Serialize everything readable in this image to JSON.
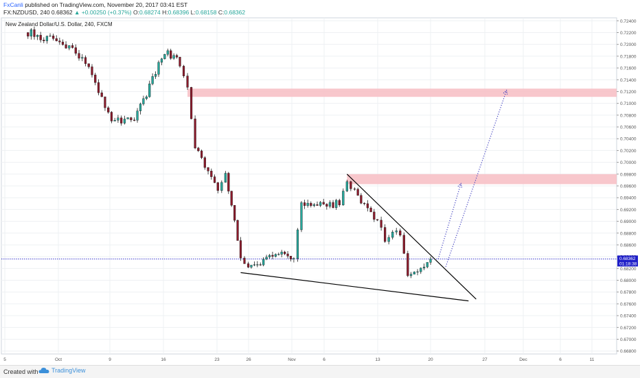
{
  "header": {
    "author": "FxCanli",
    "published_text": "published on TradingView.com, November 20, 2017 03:41 EST",
    "symbol_info": "FX:NZDUSD, 240",
    "last_price": "0.68362",
    "change": "▲ +0.00250 (+0.37%)",
    "o_label": "O:",
    "o_value": "0.68274",
    "h_label": "H:",
    "h_value": "0.68396",
    "l_label": "L:",
    "l_value": "0.68158",
    "c_label": "C:",
    "c_value": "0.68362"
  },
  "footer": {
    "created_with": "Created with",
    "brand": "TradingView"
  },
  "colors": {
    "up": "#26a69a",
    "down": "#8b1a2b",
    "wick": "#1a1a1a",
    "zone": "#f7c1c6",
    "projection": "#3d3dbf",
    "price_tag": "#1e1ec8",
    "grid": "#eef0f3"
  },
  "chart_data": {
    "type": "candlestick",
    "title": "New Zealand Dollar/U.S. Dollar, 240, FXCM",
    "y_ticks": [
      "0.72400",
      "0.72200",
      "0.72000",
      "0.71800",
      "0.71600",
      "0.71400",
      "0.71200",
      "0.71000",
      "0.70800",
      "0.70600",
      "0.70400",
      "0.70200",
      "0.70000",
      "0.69800",
      "0.69600",
      "0.69400",
      "0.69200",
      "0.69000",
      "0.68800",
      "0.68600",
      "0.68400",
      "0.68200",
      "0.68000",
      "0.67800",
      "0.67600",
      "0.67400",
      "0.67200",
      "0.67000",
      "0.66800"
    ],
    "x_ticks": [
      "5",
      "Oct",
      "9",
      "16",
      "23",
      "26",
      "Nov",
      "6",
      "13",
      "20",
      "27",
      "Dec",
      "6",
      "11"
    ],
    "ylim": [
      0.6675,
      0.7245
    ],
    "current_price": "0.68362",
    "countdown": "01:18:38",
    "zones": [
      {
        "name": "upper-resistance-zone",
        "from_date": "Oct 19",
        "low": 0.7111,
        "high": 0.7125
      },
      {
        "name": "lower-resistance-zone",
        "from_date": "Nov 9",
        "low": 0.6963,
        "high": 0.698
      }
    ],
    "trendlines": [
      {
        "name": "wedge-resistance",
        "from": [
          "Nov 9",
          0.698
        ],
        "to": [
          "Nov 26",
          0.6768
        ]
      },
      {
        "name": "wedge-support",
        "from": [
          "Oct 26",
          0.6813
        ],
        "to": [
          "Nov 25",
          0.6765
        ]
      }
    ],
    "projections": [
      {
        "name": "projection-1",
        "points": [
          [
            "Nov 21",
            0.6836
          ],
          [
            "Nov 24",
            0.6964
          ]
        ]
      },
      {
        "name": "projection-2",
        "points": [
          [
            "Nov 22",
            0.6823
          ],
          [
            "Nov 30",
            0.7122
          ]
        ]
      }
    ],
    "anchors": [
      {
        "date": "Sep 28",
        "price": 0.722
      },
      {
        "date": "Oct 3",
        "price": 0.72
      },
      {
        "date": "Oct 6",
        "price": 0.716
      },
      {
        "date": "Oct 9",
        "price": 0.707
      },
      {
        "date": "Oct 12",
        "price": 0.707
      },
      {
        "date": "Oct 16",
        "price": 0.719
      },
      {
        "date": "Oct 18",
        "price": 0.717
      },
      {
        "date": "Oct 19",
        "price": 0.713
      },
      {
        "date": "Oct 20",
        "price": 0.703
      },
      {
        "date": "Oct 23",
        "price": 0.695
      },
      {
        "date": "Oct 24",
        "price": 0.698
      },
      {
        "date": "Oct 26",
        "price": 0.684
      },
      {
        "date": "Oct 27",
        "price": 0.682
      },
      {
        "date": "Oct 31",
        "price": 0.685
      },
      {
        "date": "Nov 2",
        "price": 0.684
      },
      {
        "date": "Nov 3",
        "price": 0.693
      },
      {
        "date": "Nov 8",
        "price": 0.693
      },
      {
        "date": "Nov 9",
        "price": 0.697
      },
      {
        "date": "Nov 10",
        "price": 0.695
      },
      {
        "date": "Nov 13",
        "price": 0.69
      },
      {
        "date": "Nov 14",
        "price": 0.687
      },
      {
        "date": "Nov 15",
        "price": 0.688
      },
      {
        "date": "Nov 16",
        "price": 0.688
      },
      {
        "date": "Nov 17",
        "price": 0.681
      },
      {
        "date": "Nov 20",
        "price": 0.6836
      }
    ]
  }
}
